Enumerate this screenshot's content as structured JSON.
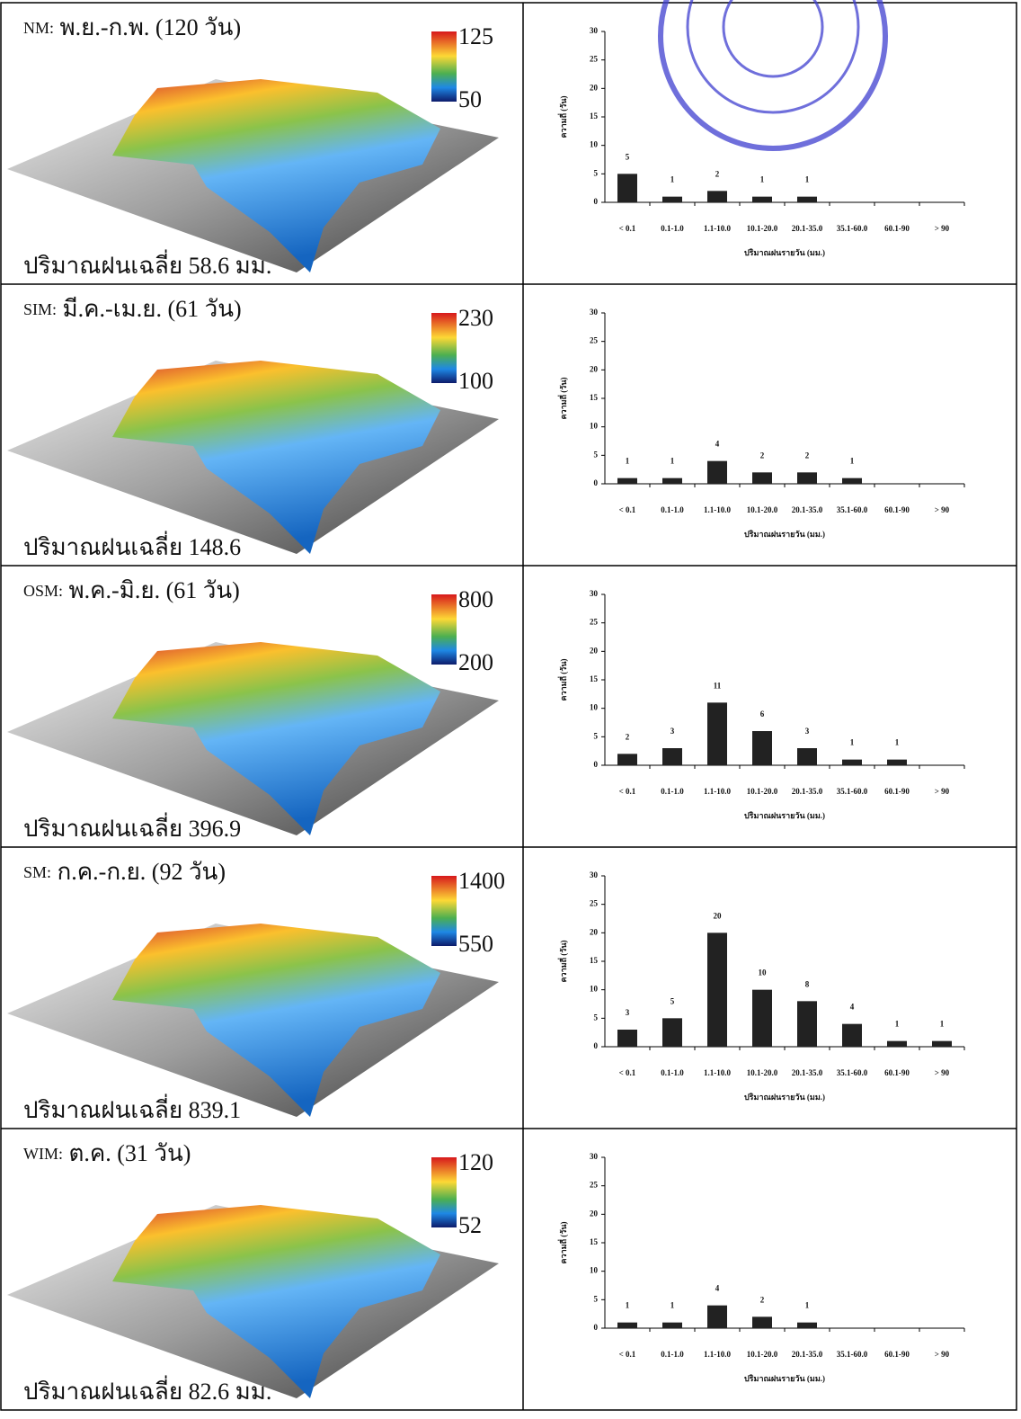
{
  "panels": [
    {
      "code": "NM:",
      "title": "พ.ย.-ก.พ. (120 วัน)",
      "legend_max": 125,
      "legend_min": 50,
      "caption": "ปริมาณฝนเฉลี่ย 58.6 มม."
    },
    {
      "code": "SIM:",
      "title": "มี.ค.-เม.ย. (61 วัน)",
      "legend_max": 230,
      "legend_min": 100,
      "caption": "ปริมาณฝนเฉลี่ย 148.6"
    },
    {
      "code": "OSM:",
      "title": "พ.ค.-มิ.ย. (61 วัน)",
      "legend_max": 800,
      "legend_min": 200,
      "caption": "ปริมาณฝนเฉลี่ย 396.9"
    },
    {
      "code": "SM:",
      "title": "ก.ค.-ก.ย. (92 วัน)",
      "legend_max": 1400,
      "legend_min": 550,
      "caption": "ปริมาณฝนเฉลี่ย 839.1"
    },
    {
      "code": "WIM:",
      "title": "ต.ค. (31 วัน)",
      "legend_max": 120,
      "legend_min": 52,
      "caption": "ปริมาณฝนเฉลี่ย 82.6 มม."
    }
  ],
  "chart_data": [
    {
      "type": "bar",
      "categories": [
        "< 0.1",
        "0.1-1.0",
        "1.1-10.0",
        "10.1-20.0",
        "20.1-35.0",
        "35.1-60.0",
        "60.1-90",
        "> 90"
      ],
      "values": [
        5,
        1,
        2,
        1,
        1,
        0,
        0,
        0
      ],
      "color": "#222222",
      "ylim": [
        0,
        30
      ],
      "yticks": [
        0,
        5,
        10,
        15,
        20,
        25,
        30
      ],
      "y_label": "ความถี่ (วัน)",
      "x_label": "ปริมาณฝนรายวัน (มม.)"
    },
    {
      "type": "bar",
      "categories": [
        "< 0.1",
        "0.1-1.0",
        "1.1-10.0",
        "10.1-20.0",
        "20.1-35.0",
        "35.1-60.0",
        "60.1-90",
        "> 90"
      ],
      "values": [
        1,
        1,
        4,
        2,
        2,
        1,
        0,
        0
      ],
      "color": "#222222",
      "ylim": [
        0,
        30
      ],
      "yticks": [
        0,
        5,
        10,
        15,
        20,
        25,
        30
      ],
      "y_label": "ความถี่ (วัน)",
      "x_label": "ปริมาณฝนรายวัน (มม.)"
    },
    {
      "type": "bar",
      "categories": [
        "< 0.1",
        "0.1-1.0",
        "1.1-10.0",
        "10.1-20.0",
        "20.1-35.0",
        "35.1-60.0",
        "60.1-90",
        "> 90"
      ],
      "values": [
        2,
        3,
        11,
        6,
        3,
        1,
        1,
        0
      ],
      "color": "#222222",
      "ylim": [
        0,
        30
      ],
      "yticks": [
        0,
        5,
        10,
        15,
        20,
        25,
        30
      ],
      "y_label": "ความถี่ (วัน)",
      "x_label": "ปริมาณฝนรายวัน (มม.)"
    },
    {
      "type": "bar",
      "categories": [
        "< 0.1",
        "0.1-1.0",
        "1.1-10.0",
        "10.1-20.0",
        "20.1-35.0",
        "35.1-60.0",
        "60.1-90",
        "> 90"
      ],
      "values": [
        3,
        5,
        20,
        10,
        8,
        4,
        1,
        1
      ],
      "color": "#222222",
      "ylim": [
        0,
        30
      ],
      "yticks": [
        0,
        5,
        10,
        15,
        20,
        25,
        30
      ],
      "y_label": "ความถี่ (วัน)",
      "x_label": "ปริมาณฝนรายวัน (มม.)"
    },
    {
      "type": "bar",
      "categories": [
        "< 0.1",
        "0.1-1.0",
        "1.1-10.0",
        "10.1-20.0",
        "20.1-35.0",
        "35.1-60.0",
        "60.1-90",
        "> 90"
      ],
      "values": [
        1,
        1,
        4,
        2,
        1,
        0,
        0,
        0
      ],
      "color": "#222222",
      "ylim": [
        0,
        30
      ],
      "yticks": [
        0,
        5,
        10,
        15,
        20,
        25,
        30
      ],
      "y_label": "ความถี่ (วัน)",
      "x_label": "ปริมาณฝนรายวัน (มม.)"
    }
  ]
}
